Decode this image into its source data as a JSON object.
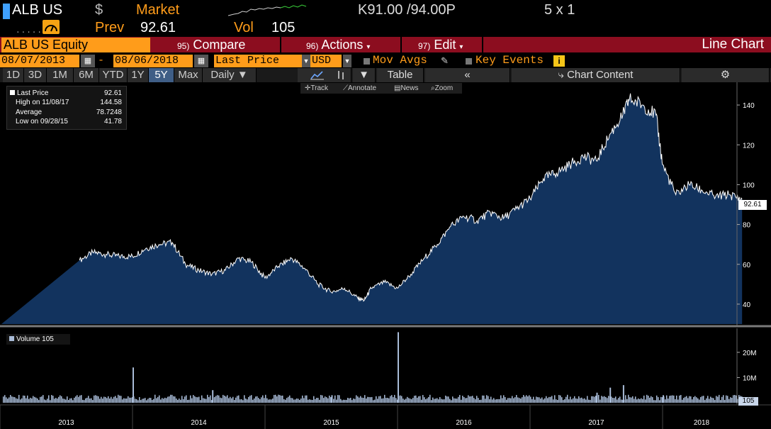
{
  "quote": {
    "ticker": "ALB US",
    "currency_symbol": "$",
    "market_label": "Market",
    "bid_ask": "K91.00 /94.00P",
    "size": "5 x 1",
    "dots": ".....",
    "prev_label": "Prev",
    "prev_value": "92.61",
    "vol_label": "Vol",
    "vol_value": "105"
  },
  "action_bar": {
    "security": "ALB US Equity",
    "compare_num": "95)",
    "compare_label": "Compare",
    "actions_num": "96)",
    "actions_label": "Actions",
    "edit_num": "97)",
    "edit_label": "Edit",
    "chart_type_label": "Line Chart"
  },
  "fields": {
    "start_date": "08/07/2013",
    "date_separator": "-",
    "end_date": "08/06/2018",
    "field": "Last Price",
    "currency": "USD",
    "mov_avgs": "Mov Avgs",
    "key_events": "Key Events",
    "info": "i"
  },
  "periods": {
    "buttons": [
      "1D",
      "3D",
      "1M",
      "6M",
      "YTD",
      "1Y",
      "5Y",
      "Max",
      "Daily ▼"
    ],
    "active": "5Y",
    "table_label": "Table",
    "chart_content_label": "Chart Content"
  },
  "tools": {
    "track": "Track",
    "annotate": "Annotate",
    "news": "News",
    "zoom": "Zoom"
  },
  "legend": {
    "last_price_label": "Last Price",
    "last_price_value": "92.61",
    "high_label": "High on 11/08/17",
    "high_value": "144.58",
    "average_label": "Average",
    "average_value": "78.7248",
    "low_label": "Low on 09/28/15",
    "low_value": "41.78"
  },
  "volume_legend": "Volume 105",
  "price_tag": "92.61",
  "volume_tag": "105",
  "colors": {
    "background": "#000000",
    "orange": "#ff9c1a",
    "action_bar": "#8c0d1f",
    "area_fill": "#12335e",
    "line": "#ffffff",
    "active_tab": "#3f5e86",
    "volume_bar": "#a9bcd8"
  },
  "chart_data": [
    {
      "type": "area",
      "series": [
        {
          "name": "Last Price",
          "x": [
            2013.6,
            2013.7,
            2013.8,
            2013.9,
            2014.0,
            2014.1,
            2014.2,
            2014.3,
            2014.4,
            2014.5,
            2014.6,
            2014.7,
            2014.8,
            2014.9,
            2015.0,
            2015.1,
            2015.2,
            2015.3,
            2015.4,
            2015.5,
            2015.6,
            2015.7,
            2015.75,
            2015.8,
            2015.9,
            2016.0,
            2016.1,
            2016.2,
            2016.3,
            2016.4,
            2016.5,
            2016.6,
            2016.7,
            2016.8,
            2016.9,
            2017.0,
            2017.1,
            2017.2,
            2017.3,
            2017.4,
            2017.5,
            2017.6,
            2017.7,
            2017.75,
            2017.85,
            2017.95,
            2018.0,
            2018.1,
            2018.2,
            2018.3,
            2018.4,
            2018.5,
            2018.6
          ],
          "values": [
            62,
            66,
            65,
            64,
            64,
            68,
            70,
            71,
            60,
            57,
            55,
            57,
            63,
            61,
            53,
            59,
            63,
            58,
            50,
            46,
            48,
            43,
            42,
            48,
            51,
            48,
            55,
            63,
            70,
            79,
            84,
            82,
            86,
            83,
            88,
            93,
            103,
            106,
            110,
            114,
            112,
            125,
            135,
            143,
            140,
            135,
            110,
            95,
            100,
            97,
            94,
            95,
            92.61
          ]
        }
      ],
      "x_ticks": [
        "2013",
        "2014",
        "2015",
        "2016",
        "2017",
        "2018"
      ],
      "y_ticks": [
        40,
        60,
        80,
        100,
        120,
        140
      ],
      "ylim": [
        30,
        150
      ],
      "grid": false,
      "legend": "top-left"
    },
    {
      "type": "bar",
      "series": [
        {
          "name": "Volume",
          "x": [
            2014.0,
            2014.6,
            2015.5,
            2016.0,
            2017.5,
            2017.6,
            2017.7,
            2018.0
          ],
          "values": [
            14,
            5,
            3,
            28,
            4,
            6,
            7,
            3
          ]
        }
      ],
      "y_ticks_label": [
        "10M",
        "20M"
      ],
      "y_ticks": [
        10,
        20
      ],
      "ylim": [
        0,
        27
      ],
      "unit": "M"
    }
  ]
}
